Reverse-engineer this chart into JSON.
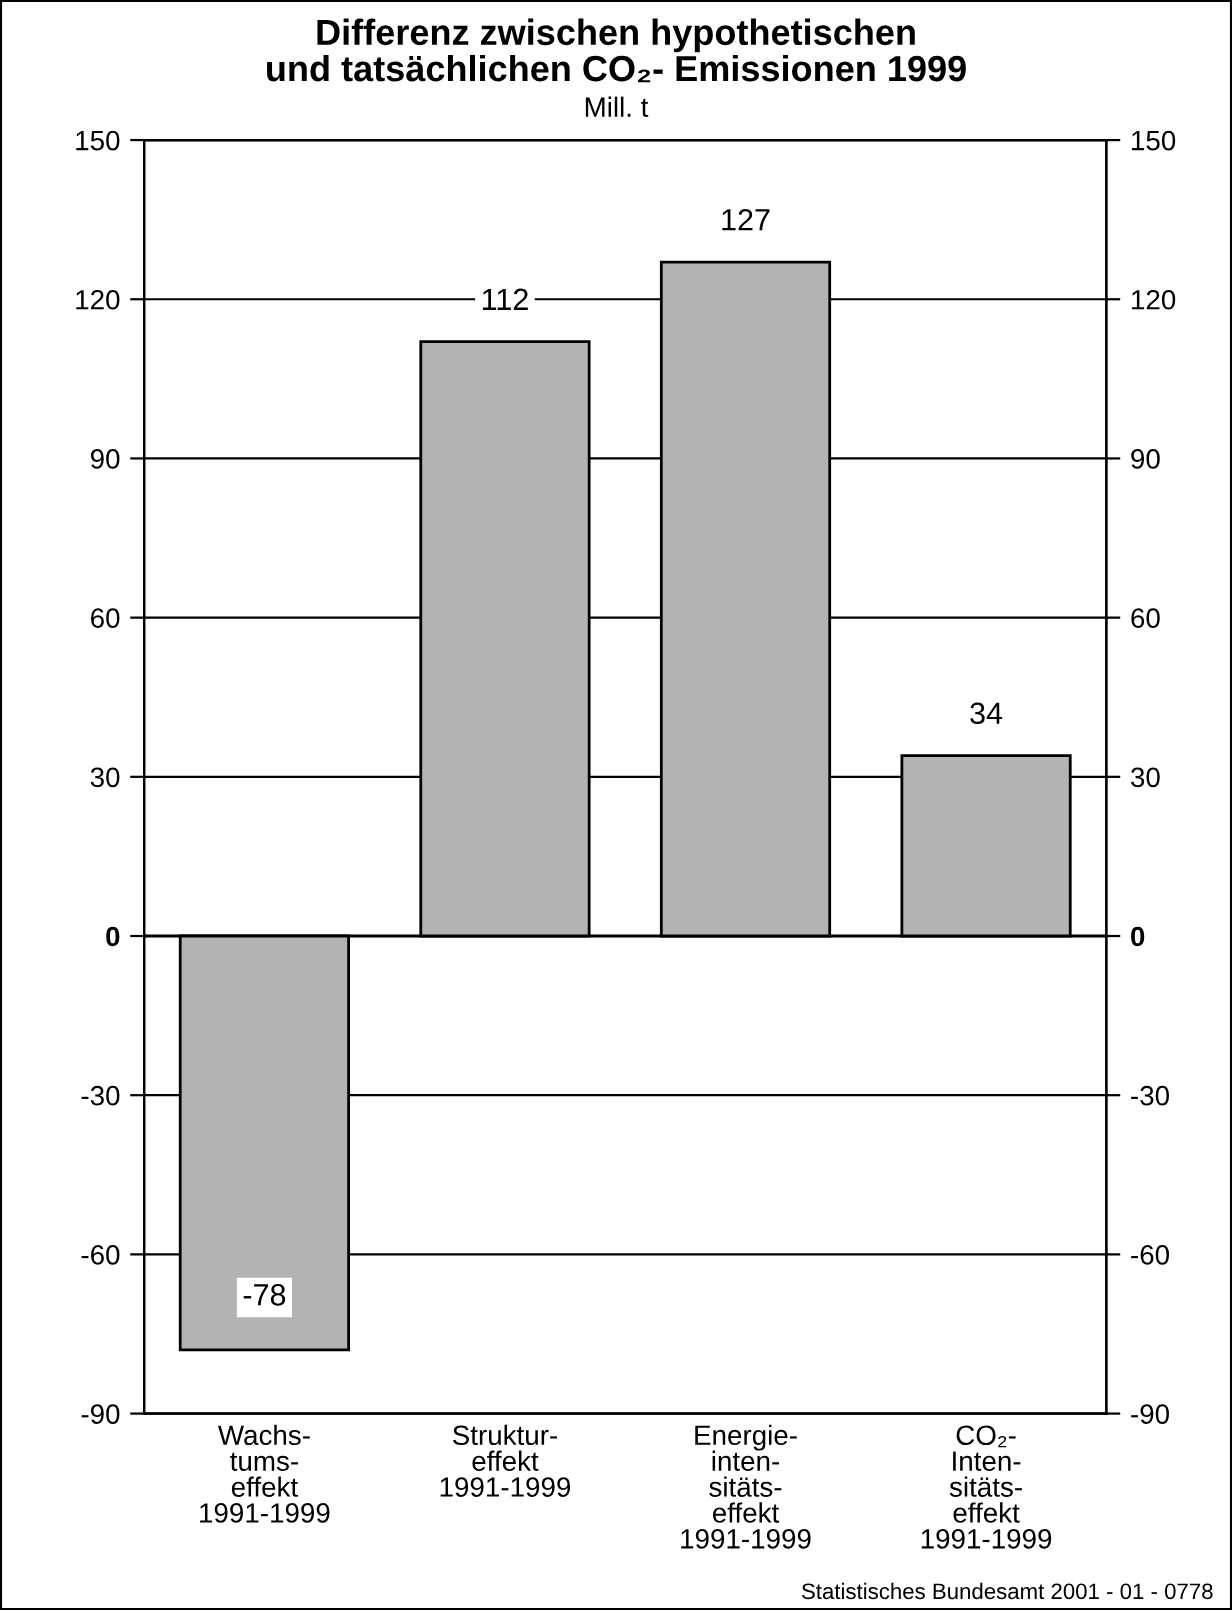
{
  "chart_data": {
    "type": "bar",
    "title": "Differenz zwischen hypothetischen\nund tatsächlichen CO₂- Emissionen 1999",
    "subtitle": "Mill. t",
    "categories": [
      "Wachs-\ntums-\neffekt\n1991-1999",
      "Struktur-\neffekt\n1991-1999",
      "Energie-\ninten-\nsitäts-\neffekt\n1991-1999",
      "CO₂-\nInten-\nsitäts-\neffekt\n1991-1999"
    ],
    "values": [
      -78,
      112,
      127,
      34
    ],
    "color": "#b3b3b3",
    "data_labels": true,
    "ylim": [
      -90,
      150
    ],
    "yticks": [
      -90,
      -60,
      -30,
      0,
      30,
      60,
      90,
      120,
      150
    ],
    "y2lim": [
      -90,
      150
    ],
    "y2ticks": [
      -90,
      -60,
      -30,
      0,
      30,
      60,
      90,
      120,
      150
    ],
    "grid": "y",
    "legend": false,
    "annotations": [
      "Statistisches Bundesamt 2001 - 01 - 0778"
    ]
  }
}
